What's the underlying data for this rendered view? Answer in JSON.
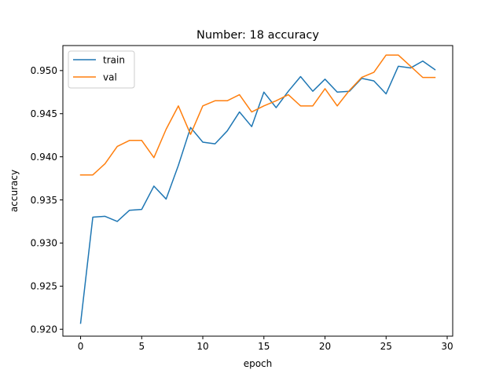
{
  "chart_data": {
    "type": "line",
    "title": "Number: 18 accuracy",
    "xlabel": "epoch",
    "ylabel": "accuracy",
    "xlim": [
      -1.45,
      30.45
    ],
    "ylim": [
      0.9192,
      0.9529
    ],
    "grid": false,
    "legend_position": "top-left",
    "x_ticks": [
      0,
      5,
      10,
      15,
      20,
      25,
      30
    ],
    "x_tick_labels": [
      "0",
      "5",
      "10",
      "15",
      "20",
      "25",
      "30"
    ],
    "y_ticks": [
      0.92,
      0.925,
      0.93,
      0.935,
      0.94,
      0.945,
      0.95
    ],
    "y_tick_labels": [
      "0.920",
      "0.925",
      "0.930",
      "0.935",
      "0.940",
      "0.945",
      "0.950"
    ],
    "x": [
      0,
      1,
      2,
      3,
      4,
      5,
      6,
      7,
      8,
      9,
      10,
      11,
      12,
      13,
      14,
      15,
      16,
      17,
      18,
      19,
      20,
      21,
      22,
      23,
      24,
      25,
      26,
      27,
      28,
      29
    ],
    "series": [
      {
        "name": "train",
        "color": "#1f77b4",
        "values": [
          0.9207,
          0.933,
          0.9331,
          0.9325,
          0.9338,
          0.9339,
          0.9366,
          0.9351,
          0.939,
          0.9434,
          0.9417,
          0.9415,
          0.943,
          0.9452,
          0.9435,
          0.9475,
          0.9457,
          0.9476,
          0.9493,
          0.9476,
          0.949,
          0.9475,
          0.9476,
          0.9491,
          0.9488,
          0.9473,
          0.9505,
          0.9503,
          0.9511,
          0.9501
        ]
      },
      {
        "name": "val",
        "color": "#ff7f0e",
        "values": [
          0.9379,
          0.9379,
          0.9392,
          0.9412,
          0.9419,
          0.9419,
          0.9399,
          0.9432,
          0.9459,
          0.9426,
          0.9459,
          0.9465,
          0.9465,
          0.9472,
          0.9452,
          0.9459,
          0.9465,
          0.9472,
          0.9459,
          0.9459,
          0.9479,
          0.9459,
          0.9477,
          0.9492,
          0.9498,
          0.9518,
          0.9518,
          0.9505,
          0.9492,
          0.9492
        ]
      }
    ]
  }
}
